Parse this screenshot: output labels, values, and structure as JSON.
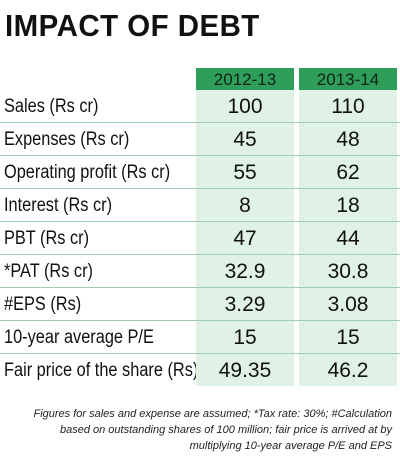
{
  "title": "IMPACT OF DEBT",
  "columns": [
    "2012-13",
    "2013-14"
  ],
  "rows": [
    {
      "label": "Sales (Rs cr)",
      "values": [
        "100",
        "110"
      ]
    },
    {
      "label": "Expenses (Rs cr)",
      "values": [
        "45",
        "48"
      ]
    },
    {
      "label": "Operating profit (Rs cr)",
      "values": [
        "55",
        "62"
      ]
    },
    {
      "label": "Interest (Rs cr)",
      "values": [
        "8",
        "18"
      ]
    },
    {
      "label": "PBT (Rs cr)",
      "values": [
        "47",
        "44"
      ]
    },
    {
      "label": "*PAT (Rs cr)",
      "values": [
        "32.9",
        "30.8"
      ]
    },
    {
      "label": "#EPS (Rs)",
      "values": [
        "3.29",
        "3.08"
      ]
    },
    {
      "label": "10-year average P/E",
      "values": [
        "15",
        "15"
      ]
    },
    {
      "label": "Fair price of the share (Rs)",
      "values": [
        "49.35",
        "46.2"
      ]
    }
  ],
  "footnote": {
    "line1": "Figures for sales and expense are assumed; *Tax rate: 30%; #Calculation",
    "line2": "based on outstanding shares of 100 million; fair price is arrived at by",
    "line3": "multiplying 10-year average P/E and EPS"
  },
  "colors": {
    "header_fill": "#2f9e5a",
    "cell_fill": "#dff2e5",
    "divider": "#9fcfae"
  }
}
